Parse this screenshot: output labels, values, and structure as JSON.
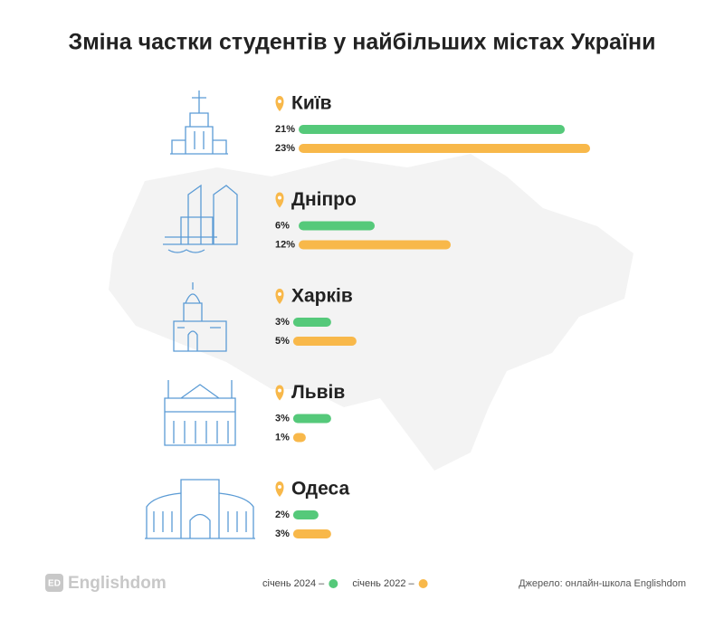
{
  "chart_data": {
    "type": "bar",
    "title": "Зміна частки студентів у найбільших містах України",
    "categories": [
      "Київ",
      "Дніпро",
      "Харків",
      "Львів",
      "Одеса"
    ],
    "series": [
      {
        "name": "січень 2024 –",
        "color": "#55c97a",
        "values": [
          21,
          6,
          3,
          3,
          2
        ],
        "value_labels": [
          "21%",
          "6%",
          "3%",
          "3%",
          "2%"
        ]
      },
      {
        "name": "січень 2022 –",
        "color": "#f8b84a",
        "values": [
          23,
          12,
          5,
          1,
          3
        ],
        "value_labels": [
          "23%",
          "12%",
          "5%",
          "1%",
          "3%"
        ]
      }
    ]
  },
  "brand": {
    "logo": "ED",
    "name": "Englishdom"
  },
  "source": "Джерело: онлайн-школа Englishdom"
}
